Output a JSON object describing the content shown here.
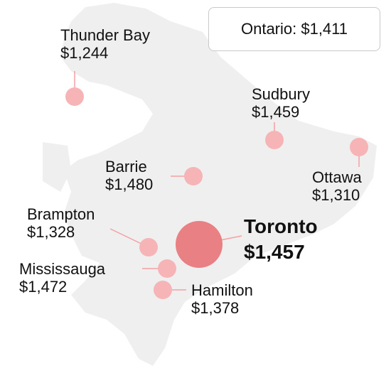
{
  "summary": {
    "label": "Ontario: $1,411"
  },
  "colors": {
    "land": "#efefef",
    "bubble": "#f7b4b7",
    "bubble_featured": "#e98083",
    "leader": "#f3a0a4"
  },
  "cities": [
    {
      "key": "thunder-bay",
      "name": "Thunder Bay",
      "value": "$1,244"
    },
    {
      "key": "sudbury",
      "name": "Sudbury",
      "value": "$1,459"
    },
    {
      "key": "ottawa",
      "name": "Ottawa",
      "value": "$1,310"
    },
    {
      "key": "barrie",
      "name": "Barrie",
      "value": "$1,480"
    },
    {
      "key": "brampton",
      "name": "Brampton",
      "value": "$1,328"
    },
    {
      "key": "toronto",
      "name": "Toronto",
      "value": "$1,457"
    },
    {
      "key": "mississauga",
      "name": "Mississauga",
      "value": "$1,472"
    },
    {
      "key": "hamilton",
      "name": "Hamilton",
      "value": "$1,378"
    }
  ]
}
